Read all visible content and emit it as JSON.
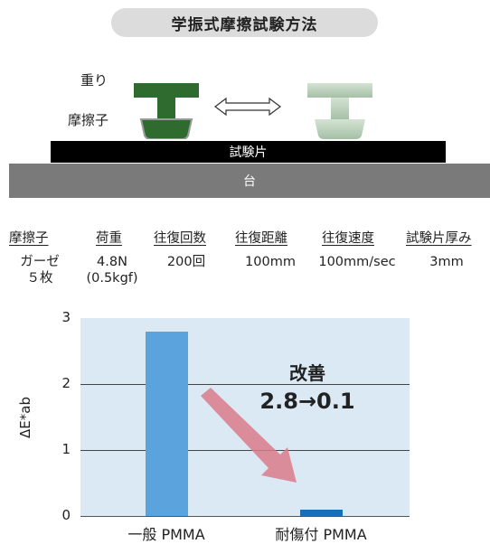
{
  "title": "学振式摩擦試験方法",
  "apparatus": {
    "weight_label": "重り",
    "friction_label": "摩擦子",
    "specimen_label": "試験片",
    "base_label": "台"
  },
  "table": {
    "headers": [
      "摩擦子",
      "荷重",
      "往復回数",
      "往復距離",
      "往復速度",
      "試験片厚み"
    ],
    "values": [
      [
        "ガーゼ",
        "５枚"
      ],
      [
        "4.8N",
        "(0.5kgf)"
      ],
      [
        "200回"
      ],
      [
        "100mm"
      ],
      [
        "100mm/sec"
      ],
      [
        "3mm"
      ]
    ]
  },
  "chart_data": {
    "type": "bar",
    "categories": [
      "一般 PMMA",
      "耐傷付 PMMA"
    ],
    "values": [
      2.8,
      0.1
    ],
    "ylabel": "ΔE*ab",
    "ylim": [
      0,
      3
    ],
    "yticks": [
      "0",
      "1",
      "2",
      "3"
    ],
    "grid": true,
    "bar_colors": [
      "#5ba3dc",
      "#1a6fb8"
    ],
    "annotation_title": "改善",
    "annotation_value": "2.8→0.1"
  },
  "colors": {
    "weight_dark": "#2f6b2f",
    "weight_light": "#a9c6a9",
    "arrow": "#d97b8a",
    "plot_bg": "#dbe9f5"
  }
}
